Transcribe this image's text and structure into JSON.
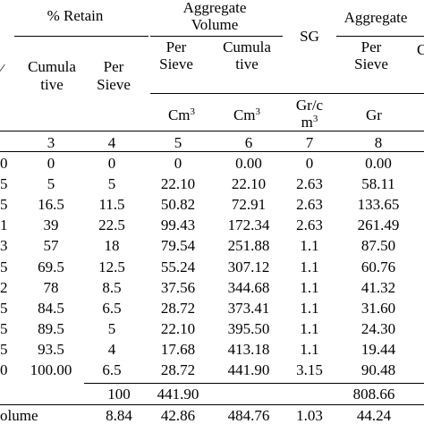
{
  "header": {
    "retain_label": "% Retain",
    "agg_volume_line1": "Aggregate",
    "agg_volume_line2": "Volume",
    "sg_label": "SG",
    "agg_weight_label": "Aggregate",
    "edge_left_char": "⁄",
    "edge_right_char": "C",
    "cumulative_line1": "Cumula",
    "cumulative_line2": "tive",
    "per_sieve_line1": "Per",
    "per_sieve_line2": "Sieve",
    "vol_per_line1": "Per",
    "vol_per_line2": "Sieve",
    "vol_cum_line1": "Cumula",
    "vol_cum_line2": "tive",
    "wt_per_line1": "Per",
    "wt_per_line2": "Sieve"
  },
  "units": {
    "col5_base": "Cm",
    "col5_exp": "3",
    "col6_base": "Cm",
    "col6_exp": "3",
    "col7_line1": "Gr/c",
    "col7_line2_base": "m",
    "col7_line2_exp": "3",
    "col8": "Gr"
  },
  "col_numbers": [
    "3",
    "4",
    "5",
    "6",
    "7",
    "8"
  ],
  "rows": [
    {
      "lead": "0",
      "c3": "0",
      "c4": "0",
      "c5": "0",
      "c6": "0.00",
      "c7": "0",
      "c8": "0.00"
    },
    {
      "lead": "5",
      "c3": "5",
      "c4": "5",
      "c5": "22.10",
      "c6": "22.10",
      "c7": "2.63",
      "c8": "58.11"
    },
    {
      "lead": "5",
      "c3": "16.5",
      "c4": "11.5",
      "c5": "50.82",
      "c6": "72.91",
      "c7": "2.63",
      "c8": "133.65"
    },
    {
      "lead": "1",
      "c3": "39",
      "c4": "22.5",
      "c5": "99.43",
      "c6": "172.34",
      "c7": "2.63",
      "c8": "261.49"
    },
    {
      "lead": "3",
      "c3": "57",
      "c4": "18",
      "c5": "79.54",
      "c6": "251.88",
      "c7": "1.1",
      "c8": "87.50"
    },
    {
      "lead": "5",
      "c3": "69.5",
      "c4": "12.5",
      "c5": "55.24",
      "c6": "307.12",
      "c7": "1.1",
      "c8": "60.76"
    },
    {
      "lead": "2",
      "c3": "78",
      "c4": "8.5",
      "c5": "37.56",
      "c6": "344.68",
      "c7": "1.1",
      "c8": "41.32"
    },
    {
      "lead": "5",
      "c3": "84.5",
      "c4": "6.5",
      "c5": "28.72",
      "c6": "373.41",
      "c7": "1.1",
      "c8": "31.60"
    },
    {
      "lead": "5",
      "c3": "89.5",
      "c4": "5",
      "c5": "22.10",
      "c6": "395.50",
      "c7": "1.1",
      "c8": "24.30"
    },
    {
      "lead": "5",
      "c3": "93.5",
      "c4": "4",
      "c5": "17.68",
      "c6": "413.18",
      "c7": "1.1",
      "c8": "19.44"
    },
    {
      "lead": "0",
      "c3": "100.00",
      "c4": "6.5",
      "c5": "28.72",
      "c6": "441.90",
      "c7": "3.15",
      "c8": "90.48"
    }
  ],
  "total_row": {
    "c4": "100",
    "c5": "441.90",
    "c8": "808.66"
  },
  "volume_row": {
    "label": "olume",
    "c4": "8.84",
    "c5": "42.86",
    "c6": "484.76",
    "c7": "1.03",
    "c8": "44.24"
  }
}
